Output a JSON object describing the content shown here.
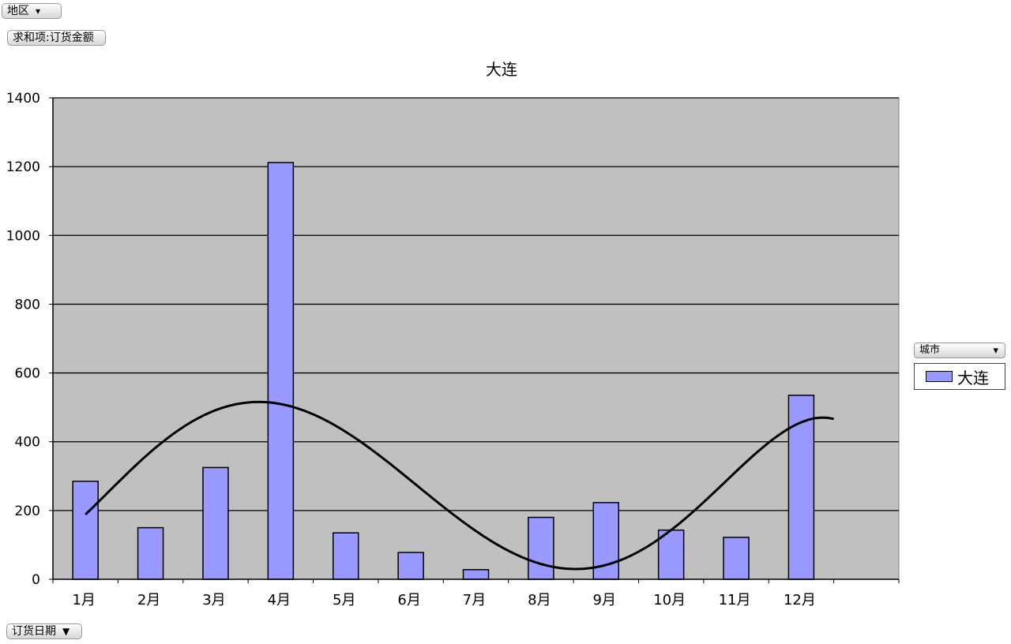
{
  "page_fields": {
    "filter_label": "地区",
    "filter_icon": "filter-dropdown-icon",
    "data_label": "求和项:订货金额",
    "category_label": "订货日期",
    "category_icon": "dropdown-arrow-icon",
    "legend_field_label": "城市",
    "legend_field_icon": "filter-dropdown-icon"
  },
  "colors": {
    "plot_background": "#c0c0c0",
    "bar_fill": "#9999ff",
    "bar_stroke": "#000000",
    "trendline": "#000000"
  },
  "chart_data": {
    "type": "bar",
    "title": "大连",
    "categories": [
      "1月",
      "2月",
      "3月",
      "4月",
      "5月",
      "6月",
      "7月",
      "8月",
      "9月",
      "10月",
      "11月",
      "12月"
    ],
    "series": [
      {
        "name": "大连",
        "values": [
          285,
          150,
          325,
          1212,
          135,
          78,
          28,
          180,
          223,
          143,
          122,
          535
        ]
      }
    ],
    "trendline": {
      "type": "polynomial",
      "shown": true
    },
    "ylim": [
      0,
      1400
    ],
    "yticks": [
      0,
      200,
      400,
      600,
      800,
      1000,
      1200,
      1400
    ],
    "xlabel": "",
    "ylabel": "",
    "grid": true,
    "legend": "right"
  }
}
